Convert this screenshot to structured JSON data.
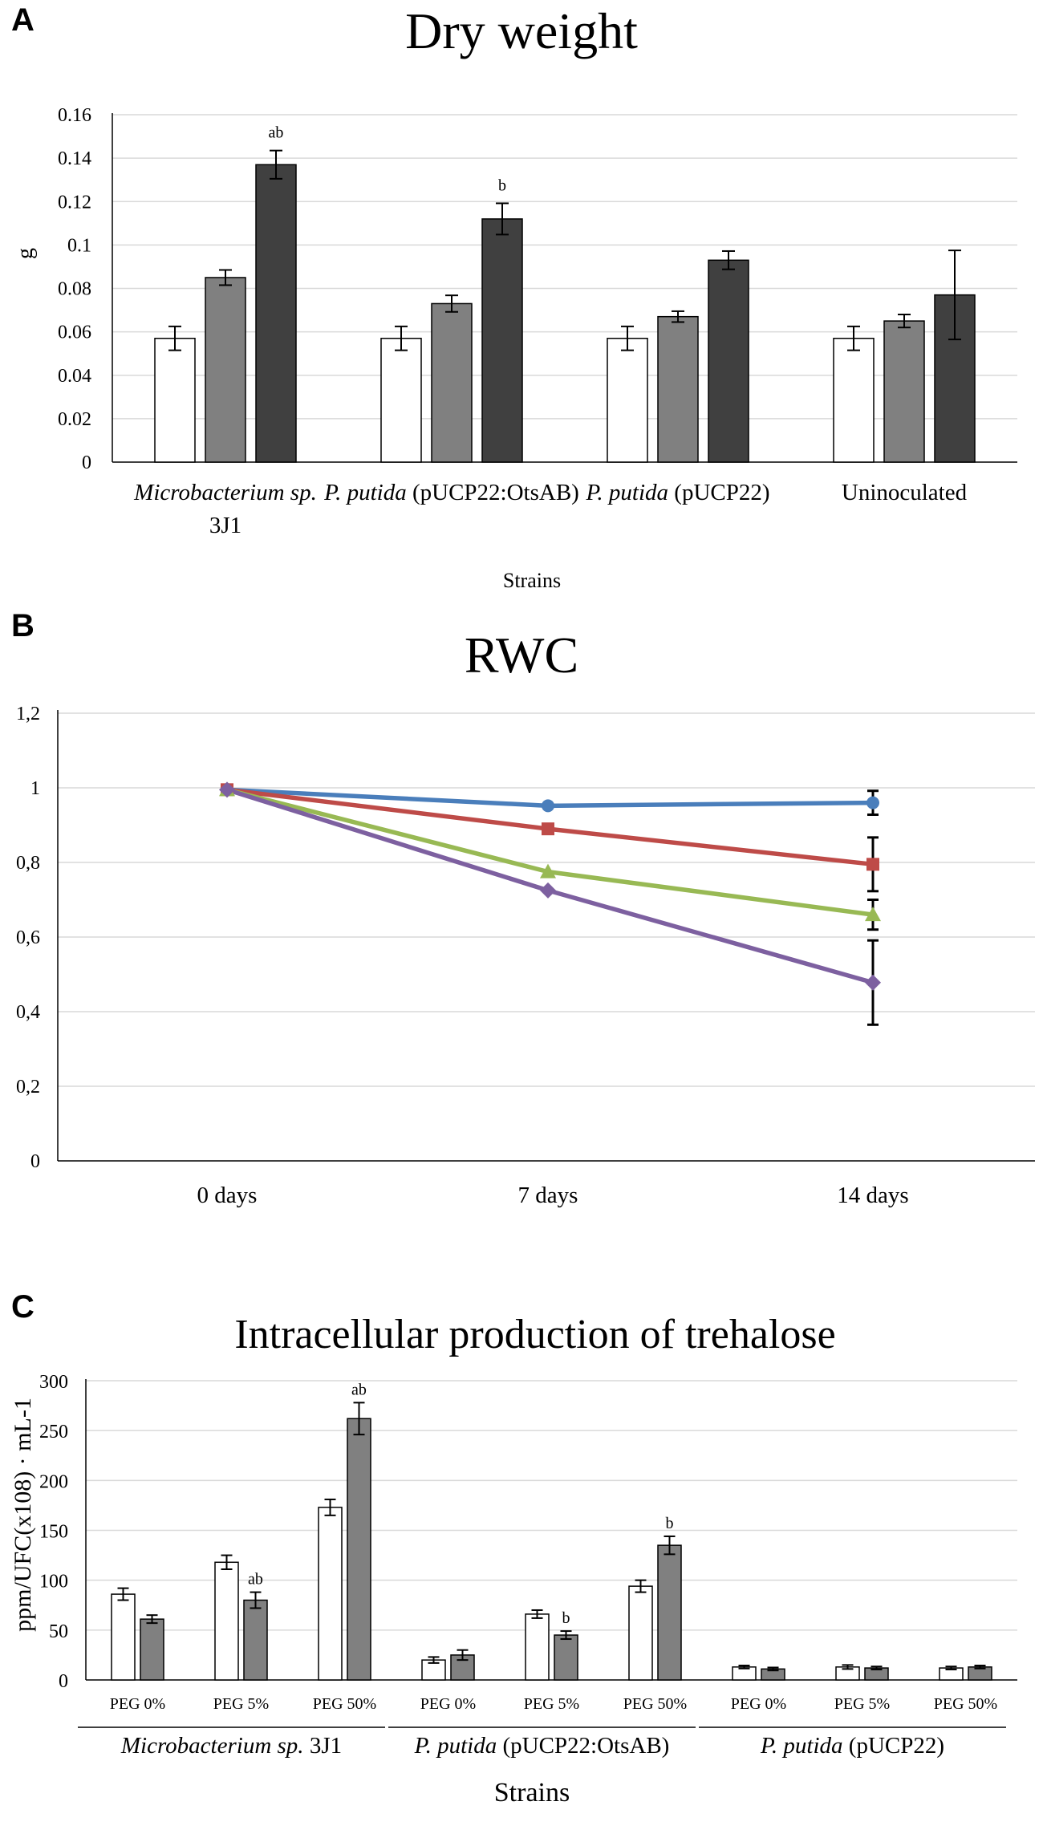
{
  "chart_data": [
    {
      "panel": "A",
      "type": "bar",
      "title": "Dry weight",
      "xlabel": "Strains",
      "ylabel": "g",
      "ylim": [
        0,
        0.16
      ],
      "yticks": [
        "0",
        "0.02",
        "0.04",
        "0.06",
        "0.08",
        "0.1",
        "0.12",
        "0.14",
        "0.16"
      ],
      "categories": [
        {
          "italic": "Microbacterium sp.",
          "rest": "",
          "line2": "3J1"
        },
        {
          "italic": "P. putida",
          "rest": " (pUCP22:OtsAB)",
          "line2": ""
        },
        {
          "italic": "P. putida",
          "rest": " (pUCP22)",
          "line2": ""
        },
        {
          "italic": "",
          "rest": "Uninoculated",
          "line2": ""
        }
      ],
      "colors": [
        "#ffffff",
        "#808080",
        "#404040"
      ],
      "series": [
        {
          "name": "series 1",
          "values": [
            0.057,
            0.057,
            0.057,
            0.057
          ],
          "errors": [
            0.0055,
            0.0055,
            0.0055,
            0.0055
          ]
        },
        {
          "name": "series 2",
          "values": [
            0.085,
            0.073,
            0.067,
            0.065
          ],
          "errors": [
            0.0035,
            0.0038,
            0.0025,
            0.003
          ]
        },
        {
          "name": "series 3",
          "values": [
            0.137,
            0.112,
            0.093,
            0.077
          ],
          "errors": [
            0.0065,
            0.0072,
            0.0042,
            0.0205
          ]
        }
      ],
      "annotations": [
        {
          "category": 0,
          "series": 2,
          "text": "ab"
        },
        {
          "category": 1,
          "series": 2,
          "text": "b"
        }
      ]
    },
    {
      "panel": "B",
      "type": "line",
      "title": "RWC",
      "ylim": [
        0,
        1.2
      ],
      "yticks": [
        "0",
        "0,2",
        "0,4",
        "0,6",
        "0,8",
        "1",
        "1,2"
      ],
      "x": [
        "0 days",
        "7 days",
        "14 days"
      ],
      "series": [
        {
          "name": "blue",
          "color": "#4a7ebb",
          "marker": "circle",
          "values": [
            0.995,
            0.952,
            0.96
          ],
          "errors": [
            0,
            0,
            0.032
          ]
        },
        {
          "name": "red",
          "color": "#be4b48",
          "marker": "square",
          "values": [
            0.995,
            0.89,
            0.795
          ],
          "errors": [
            0,
            0,
            0.072
          ]
        },
        {
          "name": "green",
          "color": "#98b954",
          "marker": "triangle",
          "values": [
            0.995,
            0.775,
            0.66
          ],
          "errors": [
            0,
            0,
            0.04
          ]
        },
        {
          "name": "purple",
          "color": "#7d60a0",
          "marker": "diamond",
          "values": [
            0.995,
            0.725,
            0.478
          ],
          "errors": [
            0,
            0,
            0.113
          ]
        }
      ]
    },
    {
      "panel": "C",
      "type": "bar",
      "title": "Intracellular production of trehalose",
      "xlabel": "Strains",
      "ylabel": "ppm/UFC(x108) · mL-1",
      "ylim": [
        0,
        300
      ],
      "yticks": [
        "0",
        "50",
        "100",
        "150",
        "200",
        "250",
        "300"
      ],
      "categories": [
        "PEG 0%",
        "PEG 5%",
        "PEG 50%",
        "PEG 0%",
        "PEG 5%",
        "PEG 50%",
        "PEG 0%",
        "PEG 5%",
        "PEG 50%"
      ],
      "groups": [
        {
          "italic": "Microbacterium sp.",
          "rest": " 3J1"
        },
        {
          "italic": "P. putida",
          "rest": " (pUCP22:OtsAB)"
        },
        {
          "italic": "P. putida",
          "rest": " (pUCP22)"
        }
      ],
      "colors": [
        "#ffffff",
        "#808080"
      ],
      "series": [
        {
          "name": "series 1",
          "values": [
            86,
            118,
            173,
            20,
            66,
            94,
            13,
            13,
            12
          ],
          "errors": [
            6,
            7,
            8,
            3,
            4,
            6,
            1.5,
            2,
            1.5
          ]
        },
        {
          "name": "series 2",
          "values": [
            61,
            80,
            262,
            25,
            45,
            135,
            11,
            12,
            13
          ],
          "errors": [
            4,
            8,
            16,
            5,
            4,
            9,
            1.5,
            1.5,
            1.5
          ]
        }
      ],
      "annotations": [
        {
          "category": 1,
          "series": 1,
          "text": "ab"
        },
        {
          "category": 2,
          "series": 1,
          "text": "ab"
        },
        {
          "category": 4,
          "series": 1,
          "text": "b"
        },
        {
          "category": 5,
          "series": 1,
          "text": "b"
        }
      ]
    }
  ]
}
